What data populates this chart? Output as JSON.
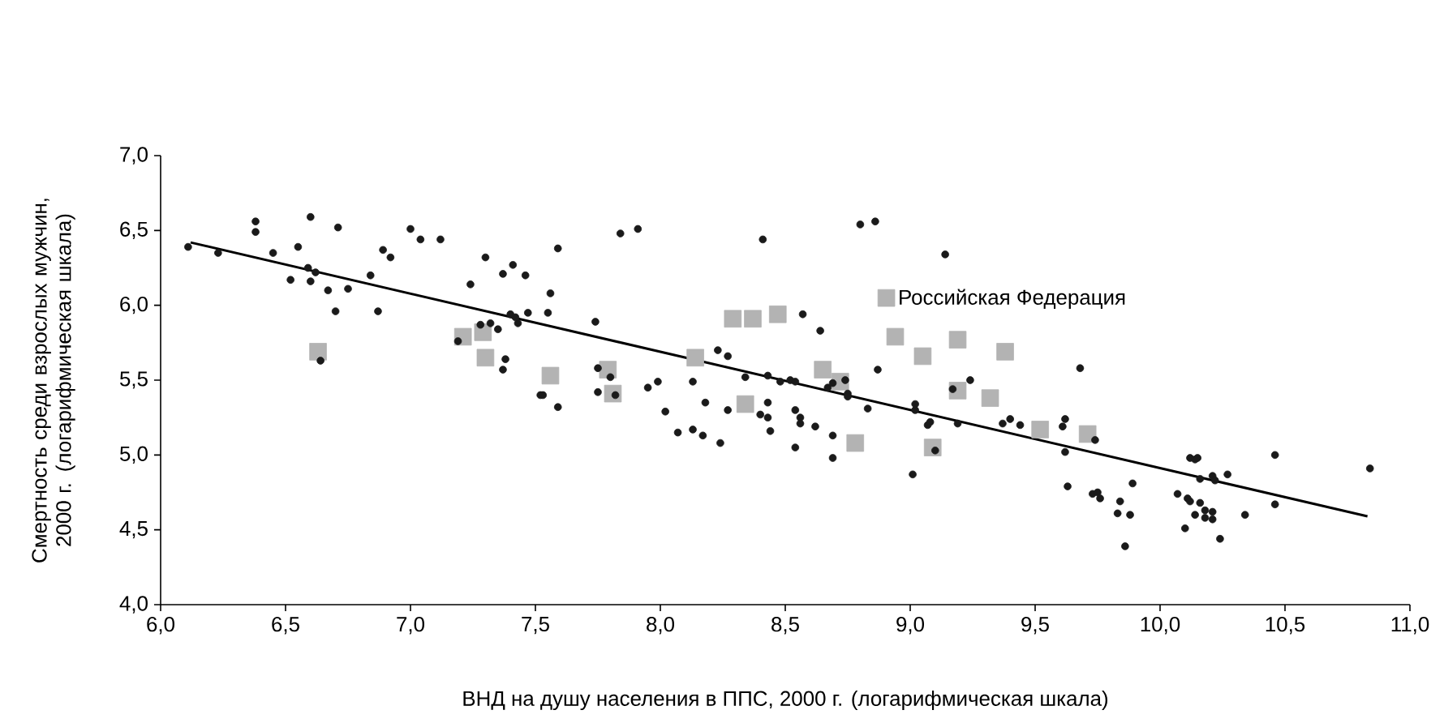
{
  "chart_data": {
    "type": "scatter",
    "xlabel": "ВНД на душу населения в ППС, 2000 г. (логарифмическая шкала)",
    "ylabel": "Смертность среди взрослых мужчин, 2000 г. (логарифмическая шкала)",
    "xlim": [
      6,
      11
    ],
    "ylim": [
      4,
      7
    ],
    "xticks": [
      {
        "value": 6,
        "label": "6,0"
      },
      {
        "value": 6.5,
        "label": "6,5"
      },
      {
        "value": 7,
        "label": "7,0"
      },
      {
        "value": 7.5,
        "label": "7,5"
      },
      {
        "value": 8,
        "label": "8,0"
      },
      {
        "value": 8.5,
        "label": "8,5"
      },
      {
        "value": 9,
        "label": "9,0"
      },
      {
        "value": 9.5,
        "label": "9,5"
      },
      {
        "value": 10,
        "label": "10,0"
      },
      {
        "value": 10.5,
        "label": "10,5"
      },
      {
        "value": 11,
        "label": "11,0"
      }
    ],
    "yticks": [
      {
        "value": 4,
        "label": "4,0"
      },
      {
        "value": 4.5,
        "label": "4,5"
      },
      {
        "value": 5,
        "label": "5,0"
      },
      {
        "value": 5.5,
        "label": "5,5"
      },
      {
        "value": 6,
        "label": "6,0"
      },
      {
        "value": 6.5,
        "label": "6,5"
      },
      {
        "value": 7,
        "label": "7,0"
      }
    ],
    "grid": false,
    "legend": "top right",
    "series": [
      {
        "color": "#1a1a1a",
        "marker": "circle",
        "x": [
          6.11,
          6.23,
          6.38,
          6.38,
          6.45,
          6.52,
          6.55,
          6.6,
          6.59,
          6.62,
          6.6,
          6.64,
          6.67,
          6.7,
          6.71,
          6.75,
          6.84,
          6.87,
          6.89,
          6.92,
          7.0,
          7.04,
          7.12,
          7.19,
          7.24,
          7.28,
          7.3,
          7.32,
          7.35,
          7.37,
          7.38,
          7.37,
          7.41,
          7.4,
          7.42,
          7.43,
          7.46,
          7.47,
          7.52,
          7.53,
          7.56,
          7.55,
          7.59,
          7.59,
          7.74,
          7.75,
          7.75,
          7.8,
          7.82,
          7.84,
          7.91,
          7.95,
          7.99,
          8.02,
          8.07,
          8.13,
          8.13,
          8.17,
          8.18,
          8.23,
          8.24,
          8.27,
          8.27,
          8.34,
          8.4,
          8.41,
          8.43,
          8.43,
          8.43,
          8.44,
          8.48,
          8.52,
          8.54,
          8.54,
          8.54,
          8.56,
          8.56,
          8.57,
          8.62,
          8.64,
          8.67,
          8.69,
          8.69,
          8.69,
          8.74,
          8.75,
          8.75,
          8.8,
          8.83,
          8.86,
          8.87,
          9.01,
          9.02,
          9.02,
          9.07,
          9.08,
          9.1,
          9.14,
          9.17,
          9.19,
          9.24,
          9.37,
          9.4,
          9.44,
          9.61,
          9.62,
          9.62,
          9.63,
          9.68,
          9.74,
          9.73,
          9.75,
          9.76,
          9.89,
          9.84,
          9.83,
          9.88,
          9.86,
          10.07,
          10.11,
          10.12,
          10.12,
          10.14,
          10.15,
          10.16,
          10.16,
          10.14,
          10.18,
          10.1,
          10.18,
          10.21,
          10.21,
          10.21,
          10.22,
          10.27,
          10.24,
          10.34,
          10.46,
          10.46,
          10.84
        ],
        "values": [
          6.39,
          6.35,
          6.56,
          6.49,
          6.35,
          6.17,
          6.39,
          6.59,
          6.25,
          6.22,
          6.16,
          5.63,
          6.1,
          5.96,
          6.52,
          6.11,
          6.2,
          5.96,
          6.37,
          6.32,
          6.51,
          6.44,
          6.44,
          5.76,
          6.14,
          5.87,
          6.32,
          5.88,
          5.84,
          6.21,
          5.64,
          5.57,
          6.27,
          5.94,
          5.92,
          5.88,
          6.2,
          5.95,
          5.4,
          5.4,
          6.08,
          5.95,
          6.38,
          5.32,
          5.89,
          5.58,
          5.42,
          5.52,
          5.4,
          6.48,
          6.51,
          5.45,
          5.49,
          5.29,
          5.15,
          5.17,
          5.49,
          5.13,
          5.35,
          5.7,
          5.08,
          5.66,
          5.3,
          5.52,
          5.27,
          6.44,
          5.35,
          5.53,
          5.25,
          5.16,
          5.49,
          5.5,
          5.49,
          5.3,
          5.05,
          5.25,
          5.21,
          5.94,
          5.19,
          5.83,
          5.45,
          5.48,
          5.13,
          4.98,
          5.5,
          5.41,
          5.39,
          6.54,
          5.31,
          6.56,
          5.57,
          4.87,
          5.34,
          5.3,
          5.2,
          5.22,
          5.03,
          6.34,
          5.44,
          5.21,
          5.5,
          5.21,
          5.24,
          5.2,
          5.19,
          5.24,
          5.02,
          4.79,
          5.58,
          5.1,
          4.74,
          4.75,
          4.71,
          4.81,
          4.69,
          4.61,
          4.6,
          4.39,
          4.74,
          4.71,
          4.69,
          4.98,
          4.97,
          4.98,
          4.84,
          4.68,
          4.6,
          4.58,
          4.51,
          4.63,
          4.86,
          4.62,
          4.57,
          4.83,
          4.87,
          4.44,
          4.6,
          5.0,
          4.67,
          4.91
        ]
      },
      {
        "name": "Российская Федерация",
        "color": "#b3b3b3",
        "marker": "square",
        "x": [
          6.63,
          7.21,
          7.29,
          7.3,
          7.56,
          7.79,
          7.81,
          8.14,
          8.29,
          8.37,
          8.34,
          8.47,
          8.65,
          8.72,
          8.78,
          8.94,
          9.05,
          9.19,
          9.19,
          9.09,
          9.38,
          9.32,
          9.52,
          9.71
        ],
        "values": [
          5.69,
          5.79,
          5.82,
          5.65,
          5.53,
          5.57,
          5.41,
          5.65,
          5.91,
          5.91,
          5.34,
          5.94,
          5.57,
          5.49,
          5.08,
          5.79,
          5.66,
          5.77,
          5.43,
          5.05,
          5.69,
          5.38,
          5.17,
          5.14
        ]
      },
      {
        "type": "line",
        "color": "#000000",
        "marker": "none",
        "line_style": "solid",
        "x": [
          6.12,
          10.83
        ],
        "values": [
          6.42,
          4.59
        ]
      }
    ]
  }
}
